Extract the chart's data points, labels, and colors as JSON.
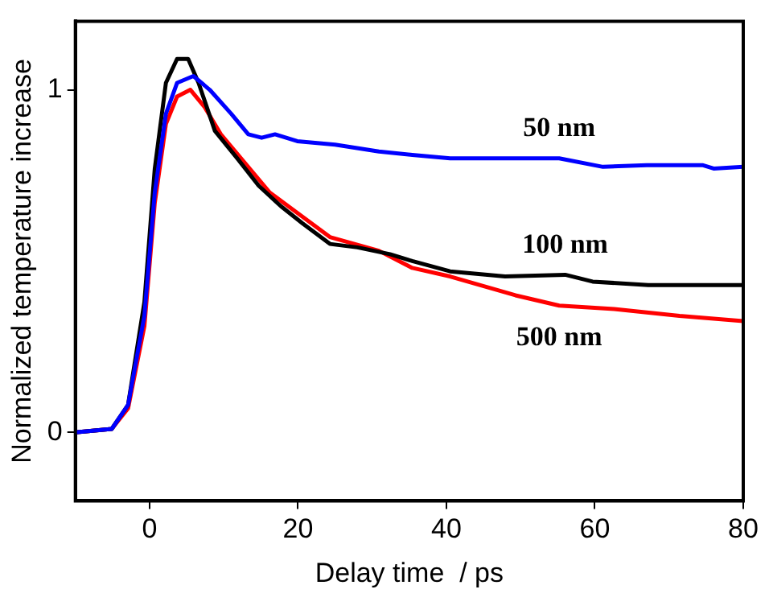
{
  "chart_data": {
    "type": "line",
    "xlabel": "Delay time  / ps",
    "ylabel": "Normalized temperature increase",
    "xlim": [
      -10,
      80
    ],
    "xticks": [
      0,
      20,
      40,
      60,
      80
    ],
    "ylim": [
      -0.2,
      1.2
    ],
    "yticks": [
      0,
      1
    ],
    "grid": false,
    "legend": false,
    "marker": "none",
    "line_style": "solid",
    "series": [
      {
        "name": "50 nm",
        "color": "#0000ff",
        "x": [
          -10,
          -5.1,
          -2.9,
          -0.7,
          0.7,
          2.2,
          3.7,
          5.9,
          8.1,
          11,
          13.3,
          15.1,
          16.9,
          19.9,
          25,
          30.9,
          35.4,
          40.5,
          48,
          55.2,
          61.1,
          67,
          74.5,
          76,
          80
        ],
        "values": [
          0,
          0.01,
          0.08,
          0.34,
          0.7,
          0.93,
          1.02,
          1.04,
          1.0,
          0.93,
          0.87,
          0.86,
          0.87,
          0.85,
          0.84,
          0.82,
          0.81,
          0.8,
          0.8,
          0.8,
          0.775,
          0.78,
          0.78,
          0.77,
          0.775
        ]
      },
      {
        "name": "100 nm",
        "color": "#000000",
        "x": [
          -10,
          -5.1,
          -2.9,
          -0.7,
          0.7,
          2.2,
          3.7,
          5.2,
          6.6,
          8.8,
          11.8,
          14.7,
          17.7,
          20.6,
          24.3,
          28,
          32.4,
          35.4,
          40.5,
          47.9,
          56,
          59.7,
          67.2,
          74.5,
          80
        ],
        "values": [
          0,
          0.01,
          0.08,
          0.38,
          0.77,
          1.02,
          1.09,
          1.09,
          1.02,
          0.88,
          0.8,
          0.72,
          0.66,
          0.61,
          0.55,
          0.54,
          0.52,
          0.5,
          0.47,
          0.455,
          0.46,
          0.44,
          0.43,
          0.43,
          0.43
        ]
      },
      {
        "name": "500 nm",
        "color": "#ff0000",
        "x": [
          -10,
          -5.1,
          -2.9,
          -0.7,
          0.7,
          2.2,
          3.7,
          5.5,
          7.4,
          9.6,
          16.2,
          24.3,
          30.9,
          35.4,
          40.5,
          49.3,
          55.2,
          62.6,
          71.4,
          80
        ],
        "values": [
          0,
          0.01,
          0.07,
          0.31,
          0.67,
          0.9,
          0.98,
          1.0,
          0.95,
          0.87,
          0.7,
          0.57,
          0.53,
          0.48,
          0.455,
          0.4,
          0.37,
          0.36,
          0.34,
          0.325
        ]
      }
    ]
  }
}
